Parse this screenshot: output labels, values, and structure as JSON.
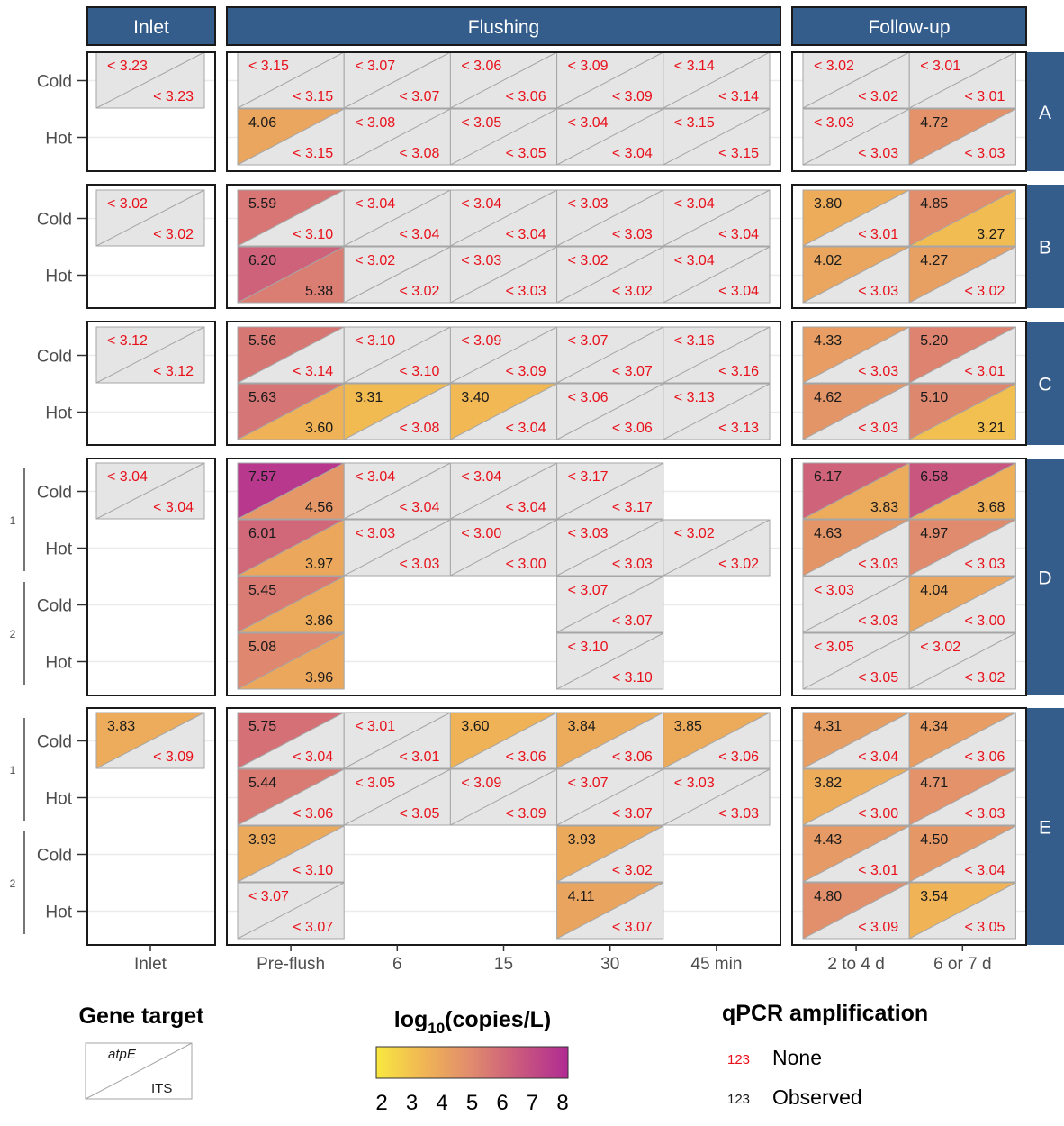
{
  "chart_data": {
    "type": "heatmap",
    "encoding": "split-tile: upper-left triangle = atpE, lower-right triangle = ITS; values in log10(copies/L); '<' prefix = no qPCR amplification (below limit)",
    "facet_columns": [
      "Inlet",
      "Flushing",
      "Follow-up"
    ],
    "x_tick_labels": {
      "Inlet": [
        "Inlet"
      ],
      "Flushing": [
        "Pre-flush",
        "6",
        "15",
        "30",
        "45 min"
      ],
      "Follow-up": [
        "2 to 4 d",
        "6 or 7 d"
      ]
    },
    "facet_rows": [
      "A",
      "B",
      "C",
      "D",
      "E"
    ],
    "row_labels": [
      "Cold",
      "Hot"
    ],
    "sub_group_labels": [
      "1",
      "2"
    ],
    "color_scale": {
      "title": "log10(copies/L)",
      "title_main": "log",
      "title_sub": "10",
      "title_rest": "(copies/L)",
      "min": 2,
      "max": 8,
      "ticks": [
        "2",
        "3",
        "4",
        "5",
        "6",
        "7",
        "8"
      ],
      "stops": [
        "#f8e840",
        "#f0b555",
        "#e08a6e",
        "#c9587e",
        "#b02b93"
      ],
      "na_color": "#e5e5e5"
    },
    "legend": {
      "gene_target_title": "Gene target",
      "gene_top": "atpE",
      "gene_bottom": "ITS",
      "qpcr_title": "qPCR amplification",
      "none_sample": "123",
      "none_label": "None",
      "observed_sample": "123",
      "observed_label": "Observed"
    },
    "panels": {
      "A": {
        "Inlet": [
          [
            "<3.23",
            "<3.23"
          ],
          null
        ],
        "Flushing": [
          [
            [
              "<3.15",
              "<3.15"
            ],
            [
              "<3.07",
              "<3.07"
            ],
            [
              "<3.06",
              "<3.06"
            ],
            [
              "<3.09",
              "<3.09"
            ],
            [
              "<3.14",
              "<3.14"
            ]
          ],
          [
            [
              "4.06",
              "<3.15"
            ],
            [
              "<3.08",
              "<3.08"
            ],
            [
              "<3.05",
              "<3.05"
            ],
            [
              "<3.04",
              "<3.04"
            ],
            [
              "<3.15",
              "<3.15"
            ]
          ]
        ],
        "Follow-up": [
          [
            [
              "<3.02",
              "<3.02"
            ],
            [
              "<3.01",
              "<3.01"
            ]
          ],
          [
            [
              "<3.03",
              "<3.03"
            ],
            [
              "4.72",
              "<3.03"
            ]
          ]
        ]
      },
      "B": {
        "Inlet": [
          [
            "<3.02",
            "<3.02"
          ],
          null
        ],
        "Flushing": [
          [
            [
              "5.59",
              "<3.10"
            ],
            [
              "<3.04",
              "<3.04"
            ],
            [
              "<3.04",
              "<3.04"
            ],
            [
              "<3.03",
              "<3.03"
            ],
            [
              "<3.04",
              "<3.04"
            ]
          ],
          [
            [
              "6.20",
              "5.38"
            ],
            [
              "<3.02",
              "<3.02"
            ],
            [
              "<3.03",
              "<3.03"
            ],
            [
              "<3.02",
              "<3.02"
            ],
            [
              "<3.04",
              "<3.04"
            ]
          ]
        ],
        "Follow-up": [
          [
            [
              "3.80",
              "<3.01"
            ],
            [
              "4.85",
              "3.27"
            ]
          ],
          [
            [
              "4.02",
              "<3.03"
            ],
            [
              "4.27",
              "<3.02"
            ]
          ]
        ]
      },
      "C": {
        "Inlet": [
          [
            "<3.12",
            "<3.12"
          ],
          null
        ],
        "Flushing": [
          [
            [
              "5.56",
              "<3.14"
            ],
            [
              "<3.10",
              "<3.10"
            ],
            [
              "<3.09",
              "<3.09"
            ],
            [
              "<3.07",
              "<3.07"
            ],
            [
              "<3.16",
              "<3.16"
            ]
          ],
          [
            [
              "5.63",
              "3.60"
            ],
            [
              "3.31",
              "<3.08"
            ],
            [
              "3.40",
              "<3.04"
            ],
            [
              "<3.06",
              "<3.06"
            ],
            [
              "<3.13",
              "<3.13"
            ]
          ]
        ],
        "Follow-up": [
          [
            [
              "4.33",
              "<3.03"
            ],
            [
              "5.20",
              "<3.01"
            ]
          ],
          [
            [
              "4.62",
              "<3.03"
            ],
            [
              "5.10",
              "3.21"
            ]
          ]
        ]
      },
      "D": {
        "Inlet": [
          [
            "<3.04",
            "<3.04"
          ],
          null,
          null,
          null
        ],
        "Flushing": [
          [
            [
              "7.57",
              "4.56"
            ],
            [
              "<3.04",
              "<3.04"
            ],
            [
              "<3.04",
              "<3.04"
            ],
            [
              "<3.17",
              "<3.17"
            ],
            null
          ],
          [
            [
              "6.01",
              "3.97"
            ],
            [
              "<3.03",
              "<3.03"
            ],
            [
              "<3.00",
              "<3.00"
            ],
            [
              "<3.03",
              "<3.03"
            ],
            [
              "<3.02",
              "<3.02"
            ]
          ],
          [
            [
              "5.45",
              "3.86"
            ],
            null,
            null,
            [
              "<3.07",
              "<3.07"
            ],
            null
          ],
          [
            [
              "5.08",
              "3.96"
            ],
            null,
            null,
            [
              "<3.10",
              "<3.10"
            ],
            null
          ]
        ],
        "Follow-up": [
          [
            [
              "6.17",
              "3.83"
            ],
            [
              "6.58",
              "3.68"
            ]
          ],
          [
            [
              "4.63",
              "<3.03"
            ],
            [
              "4.97",
              "<3.03"
            ]
          ],
          [
            [
              "<3.03",
              "<3.03"
            ],
            [
              "4.04",
              "<3.00"
            ]
          ],
          [
            [
              "<3.05",
              "<3.05"
            ],
            [
              "<3.02",
              "<3.02"
            ]
          ]
        ]
      },
      "E": {
        "Inlet": [
          [
            "3.83",
            "<3.09"
          ],
          null,
          null,
          null
        ],
        "Flushing": [
          [
            [
              "5.75",
              "<3.04"
            ],
            [
              "<3.01",
              "<3.01"
            ],
            [
              "3.60",
              "<3.06"
            ],
            [
              "3.84",
              "<3.06"
            ],
            [
              "3.85",
              "<3.06"
            ]
          ],
          [
            [
              "5.44",
              "<3.06"
            ],
            [
              "<3.05",
              "<3.05"
            ],
            [
              "<3.09",
              "<3.09"
            ],
            [
              "<3.07",
              "<3.07"
            ],
            [
              "<3.03",
              "<3.03"
            ]
          ],
          [
            [
              "3.93",
              "<3.10"
            ],
            null,
            null,
            [
              "3.93",
              "<3.02"
            ],
            null
          ],
          [
            [
              "<3.07",
              "<3.07"
            ],
            null,
            null,
            [
              "4.11",
              "<3.07"
            ],
            null
          ]
        ],
        "Follow-up": [
          [
            [
              "4.31",
              "<3.04"
            ],
            [
              "4.34",
              "<3.06"
            ]
          ],
          [
            [
              "3.82",
              "<3.00"
            ],
            [
              "4.71",
              "<3.03"
            ]
          ],
          [
            [
              "4.43",
              "<3.01"
            ],
            [
              "4.50",
              "<3.04"
            ]
          ],
          [
            [
              "4.80",
              "<3.09"
            ],
            [
              "3.54",
              "<3.05"
            ]
          ]
        ]
      }
    }
  }
}
